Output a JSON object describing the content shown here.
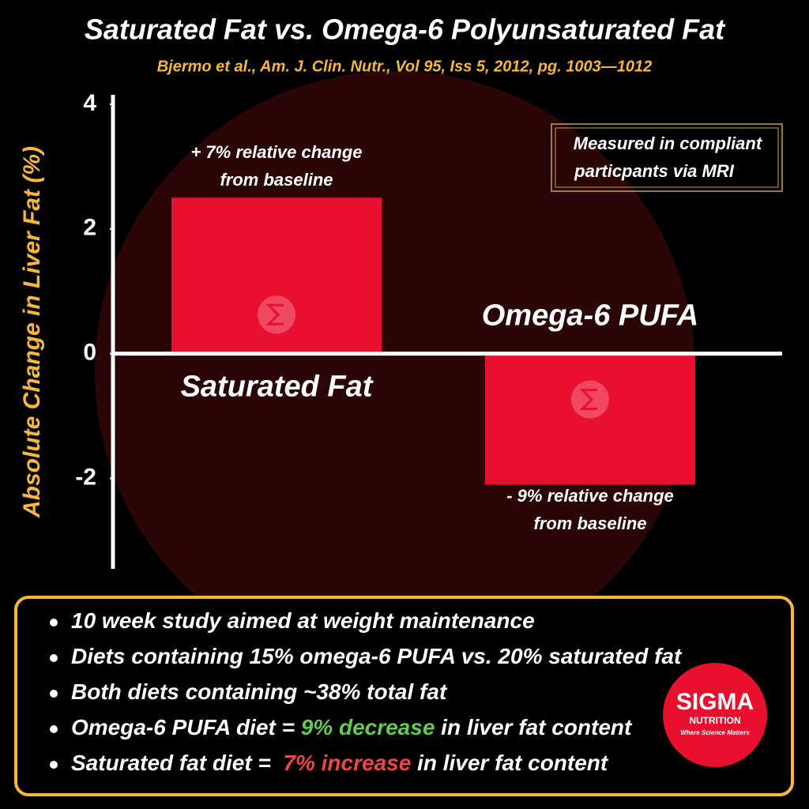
{
  "chart_data": {
    "type": "bar",
    "title": "Saturated Fat vs. Omega-6 Polyunsaturated Fat",
    "subtitle": "Bjermo et al., Am. J. Clin. Nutr., Vol 95, Iss 5, 2012, pg. 1003—1012",
    "y_label": "Absolute Change in Liver Fat (%)",
    "categories": [
      "Saturated Fat",
      "Omega-6 PUFA"
    ],
    "values": [
      2.5,
      -2.1
    ],
    "color": "#e8102e",
    "annotations": [
      [
        "+ 7% relative change",
        "from baseline"
      ],
      [
        "- 9% relative change",
        "from baseline"
      ]
    ],
    "ylim": [
      -3.45,
      4.15
    ],
    "yticks": [
      4,
      2,
      0,
      -2
    ],
    "note": [
      "Measured in compliant",
      "particpants via MRI"
    ]
  },
  "notes": [
    [
      {
        "text": "10 week study aimed at weight maintenance"
      }
    ],
    [
      {
        "text": "Diets containing 15% omega-6 PUFA vs. 20% saturated fat"
      }
    ],
    [
      {
        "text": "Both diets containing ~38% total fat"
      }
    ],
    [
      {
        "text": "Omega-6 PUFA diet = "
      },
      {
        "text": "9% decrease",
        "color": "#5fcf4a"
      },
      {
        "text": " in liver fat content"
      }
    ],
    [
      {
        "text": "Saturated fat diet =  "
      },
      {
        "text": "7% increase",
        "color": "#f04545"
      },
      {
        "text": " in liver fat content"
      }
    ]
  ],
  "logo": {
    "name": "SIGMA",
    "line2": "NUTRITION",
    "tagline": "Where Science Matters"
  }
}
